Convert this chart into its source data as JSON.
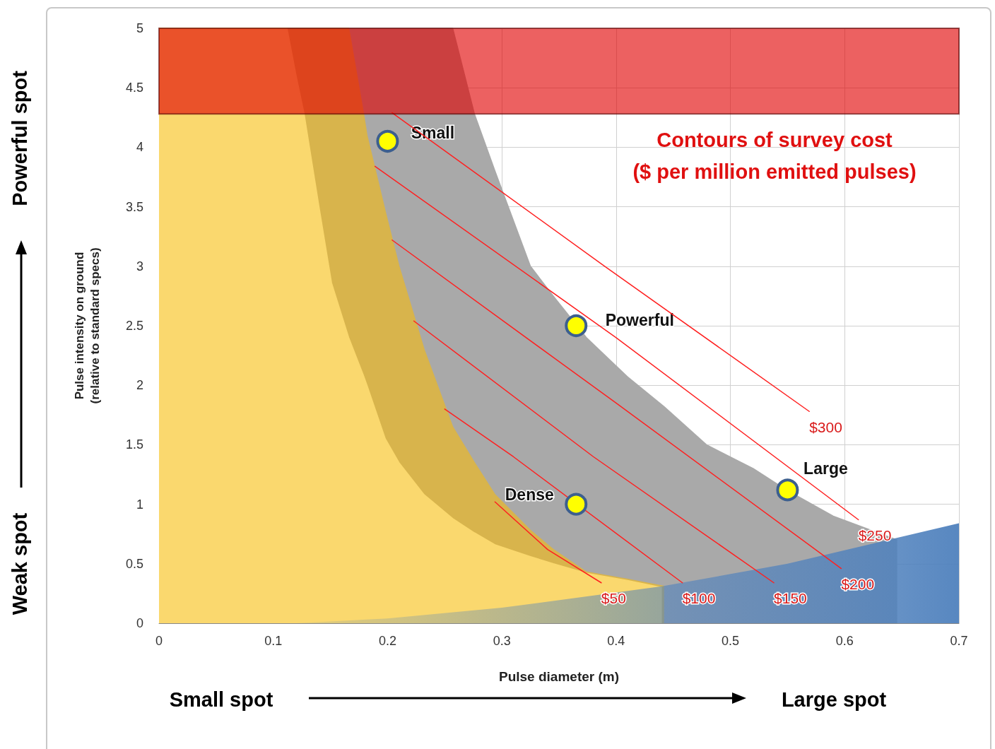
{
  "chart_data": {
    "type": "area",
    "xlabel": "Pulse diameter (m)",
    "ylabel": "Pulse intensity on ground\n(relative to standard specs)",
    "x": [
      0,
      0.1,
      0.112,
      0.12,
      0.127,
      0.14,
      0.151,
      0.166,
      0.179,
      0.182,
      0.198,
      0.21,
      0.232,
      0.257,
      0.276,
      0.294,
      0.325,
      0.345,
      0.374,
      0.41,
      0.442,
      0.479,
      0.52,
      0.549,
      0.59,
      0.646
    ],
    "series": [
      {
        "color": "#a9a9a9",
        "values": [
          5,
          5,
          5,
          5,
          5,
          5,
          5,
          5,
          5,
          5,
          5,
          5,
          5,
          5,
          4.28,
          3.8,
          3.0,
          2.75,
          2.4,
          2.07,
          1.82,
          1.5,
          1.3,
          1.12,
          0.9,
          0.7
        ]
      },
      {
        "color": "#d8b44c",
        "x": [
          0,
          0.1,
          0.112,
          0.12,
          0.127,
          0.14,
          0.151,
          0.166,
          0.179,
          0.182,
          0.198,
          0.21,
          0.232,
          0.257,
          0.276,
          0.294,
          0.325,
          0.345,
          0.374,
          0.41,
          0.442
        ],
        "values": [
          5,
          5,
          5,
          5,
          5,
          5,
          5,
          5,
          4.28,
          4.1,
          3.46,
          3.0,
          2.3,
          1.65,
          1.35,
          1.08,
          0.78,
          0.62,
          0.43,
          0.37,
          0.31
        ]
      },
      {
        "color": "#fad86e",
        "x": [
          0,
          0.112,
          0.12,
          0.127,
          0.14,
          0.151,
          0.166,
          0.179,
          0.182,
          0.198,
          0.21,
          0.232,
          0.257,
          0.276,
          0.294,
          0.325,
          0.345,
          0.374,
          0.41,
          0.44
        ],
        "values": [
          5,
          5,
          4.6,
          4.28,
          3.5,
          2.86,
          2.4,
          2.08,
          2.0,
          1.55,
          1.35,
          1.08,
          0.88,
          0.76,
          0.66,
          0.56,
          0.5,
          0.42,
          0.36,
          0.3
        ]
      },
      {
        "type": "area",
        "color": "#4f81bd",
        "x": [
          0.12,
          0.2,
          0.3,
          0.44,
          0.55,
          0.7
        ],
        "values": [
          0,
          0.04,
          0.13,
          0.31,
          0.5,
          0.84
        ]
      },
      {
        "type": "line",
        "name": "$50",
        "color": "#ff2020",
        "x": [
          0.294,
          0.34,
          0.387
        ],
        "values": [
          1.02,
          0.62,
          0.34
        ]
      },
      {
        "type": "line",
        "name": "$100",
        "color": "#ff2020",
        "x": [
          0.25,
          0.31,
          0.458
        ],
        "values": [
          1.8,
          1.4,
          0.34
        ]
      },
      {
        "type": "line",
        "name": "$150",
        "color": "#ff2020",
        "x": [
          0.223,
          0.38,
          0.538
        ],
        "values": [
          2.54,
          1.4,
          0.34
        ]
      },
      {
        "type": "line",
        "name": "$200",
        "color": "#ff2020",
        "x": [
          0.204,
          0.4,
          0.597
        ],
        "values": [
          3.22,
          1.85,
          0.46
        ]
      },
      {
        "type": "line",
        "name": "$250",
        "color": "#ff2020",
        "x": [
          0.189,
          0.4,
          0.612
        ],
        "values": [
          3.84,
          2.4,
          0.87
        ]
      },
      {
        "type": "line",
        "name": "$300",
        "color": "#ff2020",
        "x": [
          0.204,
          0.39,
          0.569
        ],
        "values": [
          4.29,
          3.0,
          1.78
        ]
      },
      {
        "type": "scatter",
        "marker": "circle",
        "color": "#ffff00",
        "x": [
          0.2,
          0.365,
          0.365,
          0.55
        ],
        "values": [
          4.05,
          2.5,
          1.0,
          1.12
        ]
      }
    ],
    "bands": [
      {
        "axis": "y",
        "from": 4.28,
        "to": 5,
        "color": "#e00000"
      }
    ],
    "annotations": [
      "Contours of survey cost\n($ per million emitted pulses)",
      "Powerful spot",
      "Weak spot",
      "Small spot",
      "Large spot",
      {
        "text": "Small",
        "x": 0.2,
        "y": 4.05
      },
      {
        "text": "Powerful",
        "x": 0.365,
        "y": 2.5
      },
      {
        "text": "Dense",
        "x": 0.365,
        "y": 1.0
      },
      {
        "text": "Large",
        "x": 0.55,
        "y": 1.12
      }
    ],
    "xlim": [
      0,
      0.7
    ],
    "xticks": [
      0,
      0.1,
      0.2,
      0.3,
      0.4,
      0.5,
      0.6,
      0.7
    ],
    "ylim": [
      0,
      5
    ],
    "yticks": [
      0,
      0.5,
      1,
      1.5,
      2,
      2.5,
      3,
      3.5,
      4,
      4.5,
      5
    ],
    "grid": true,
    "legend": false
  }
}
